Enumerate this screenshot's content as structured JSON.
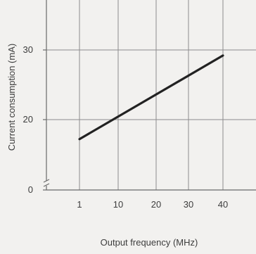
{
  "chart_data": {
    "type": "line",
    "xlabel": "Output frequency (MHz)",
    "ylabel": "Current consumption (mA)",
    "x_ticks": [
      "1",
      "10",
      "20",
      "30",
      "40"
    ],
    "y_ticks": [
      "0",
      "20",
      "30"
    ],
    "y_axis_break": true,
    "grid": true,
    "series": [
      {
        "x": [
          "1",
          "40"
        ],
        "y": [
          17.2,
          29.2
        ]
      }
    ],
    "ylim": [
      0,
      30
    ]
  },
  "colors": {
    "background": "#f2f1ef",
    "grid": "#8c8c8c",
    "axis": "#6a6a6a",
    "line": "#222222",
    "text": "#3d3d3d"
  }
}
